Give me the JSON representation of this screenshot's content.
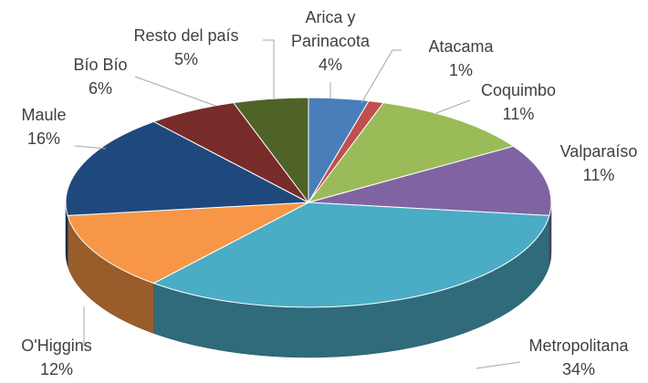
{
  "chart_data": {
    "type": "pie3d",
    "categories": [
      "Arica y Parinacota",
      "Atacama",
      "Coquimbo",
      "Valparaíso",
      "Metropolitana",
      "O'Higgins",
      "Maule",
      "Bío Bío",
      "Resto del país"
    ],
    "values": [
      4,
      1,
      11,
      11,
      34,
      12,
      16,
      6,
      5
    ],
    "value_labels": [
      "4%",
      "1%",
      "11%",
      "11%",
      "34%",
      "12%",
      "16%",
      "6%",
      "5%"
    ],
    "colors": [
      "#4a7ebb",
      "#c0504d",
      "#9bbb59",
      "#8064a2",
      "#4bacc6",
      "#f79646",
      "#1f497d",
      "#772c2a",
      "#4f6228"
    ]
  }
}
